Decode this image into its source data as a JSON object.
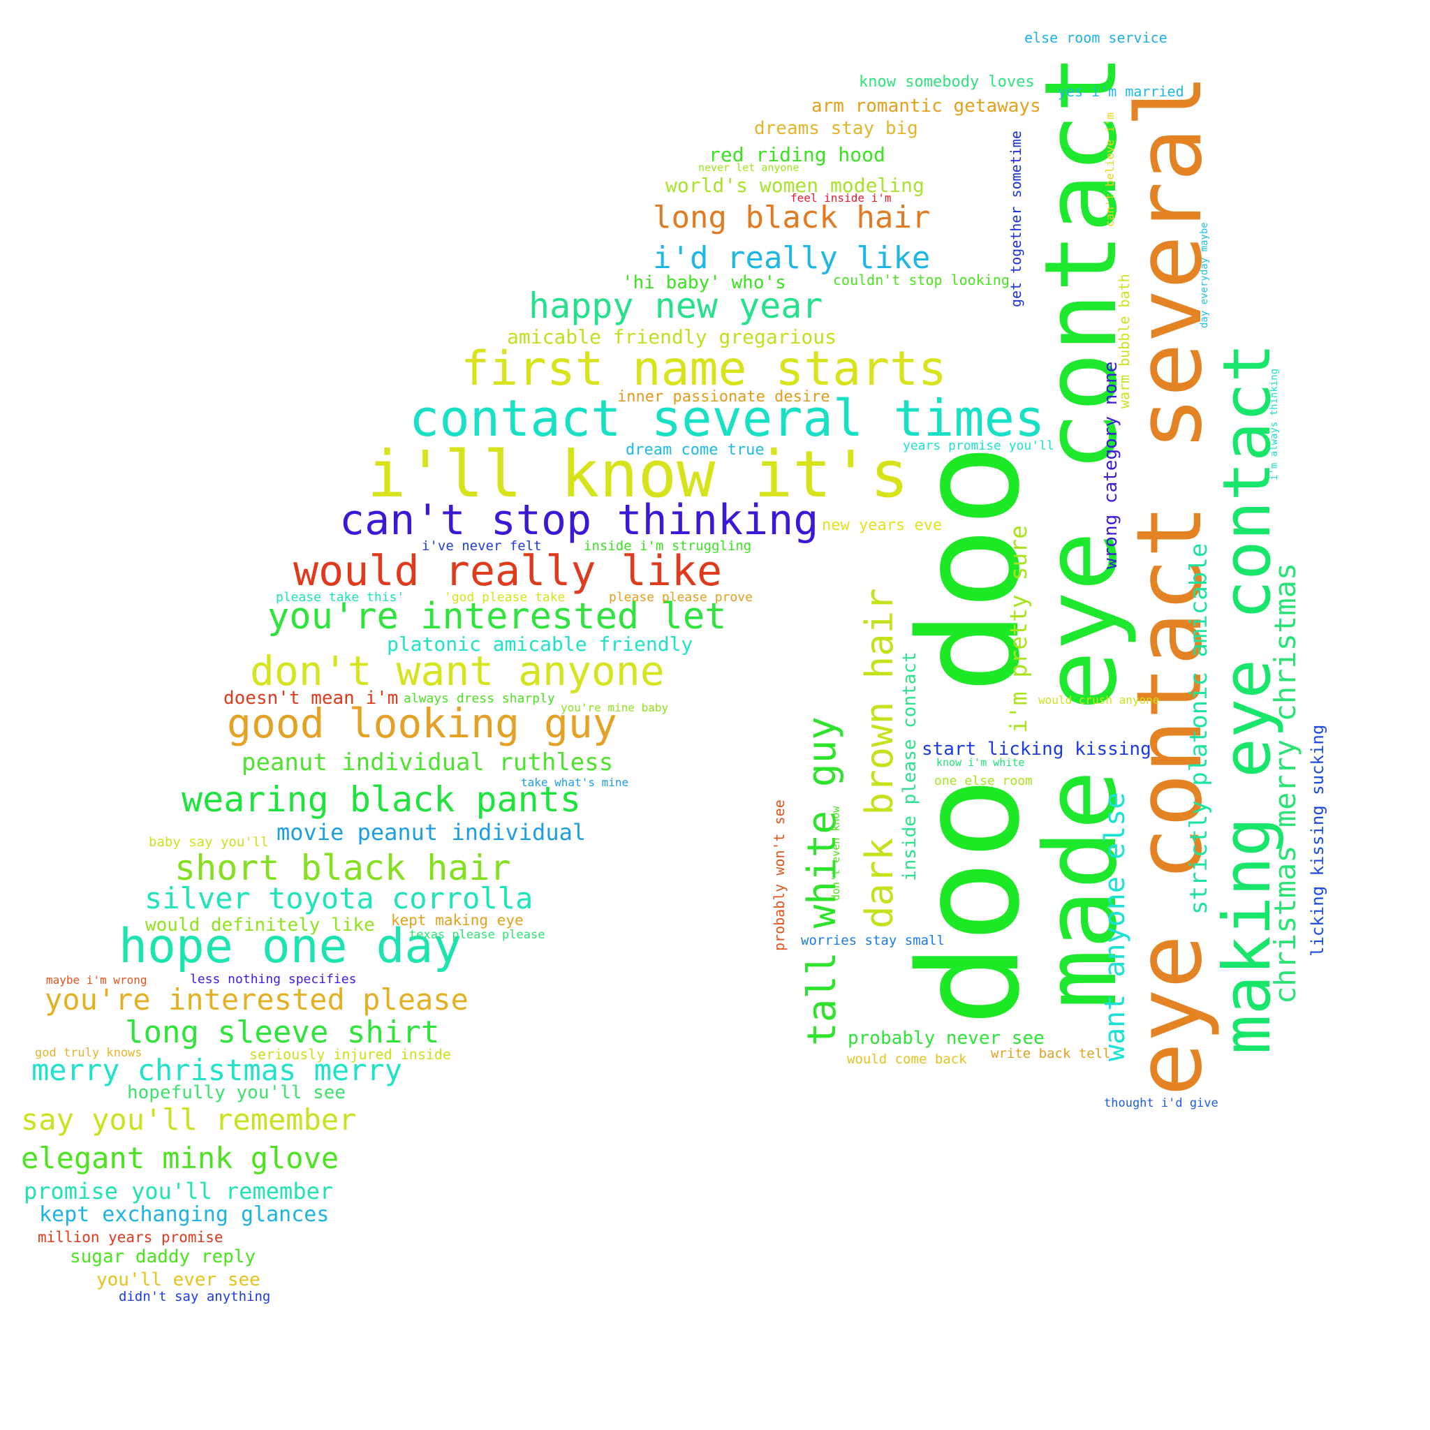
{
  "words": [
    {
      "text": "doo doo",
      "color": "#1de826"
    },
    {
      "text": "made eye contact",
      "color": "#1ee82d"
    },
    {
      "text": "eye contact several",
      "color": "#e38323"
    },
    {
      "text": "making eye contact",
      "color": "#17e66b"
    },
    {
      "text": "i'll know it's",
      "color": "#d6e31a"
    },
    {
      "text": "contact several times",
      "color": "#18e0c4"
    },
    {
      "text": "first name starts",
      "color": "#d9e31c"
    },
    {
      "text": "can't stop thinking",
      "color": "#3a19d6"
    },
    {
      "text": "would really like",
      "color": "#e03a1c"
    },
    {
      "text": "you're interested let",
      "color": "#2ee33c"
    },
    {
      "text": "don't want anyone",
      "color": "#d6e31f"
    },
    {
      "text": "good looking guy",
      "color": "#e3a126"
    },
    {
      "text": "hope one day",
      "color": "#1de3b0"
    },
    {
      "text": "happy new year",
      "color": "#27e08c"
    },
    {
      "text": "long black hair",
      "color": "#e07b22"
    },
    {
      "text": "i'd really like",
      "color": "#1cb7e3"
    },
    {
      "text": "wearing black pants",
      "color": "#1fe33d"
    },
    {
      "text": "short black hair",
      "color": "#84e01e"
    },
    {
      "text": "silver toyota corrolla",
      "color": "#1fe3b9"
    },
    {
      "text": "you're interested please",
      "color": "#e3b024"
    },
    {
      "text": "long sleeve shirt",
      "color": "#2ee33a"
    },
    {
      "text": "merry christmas merry",
      "color": "#1fe3c9"
    },
    {
      "text": "say you'll remember",
      "color": "#c6e31f"
    },
    {
      "text": "elegant mink glove",
      "color": "#4be31f"
    },
    {
      "text": "peanut individual ruthless",
      "color": "#4be32b"
    },
    {
      "text": "tall white guy",
      "color": "#2ee32b"
    },
    {
      "text": "dark brown hair",
      "color": "#c2e31c"
    },
    {
      "text": "christmas merry christmas",
      "color": "#2be375"
    },
    {
      "text": "want anyone else",
      "color": "#1ce0d6"
    },
    {
      "text": "strictly platonic amicable",
      "color": "#1ee3a0"
    },
    {
      "text": "movie peanut individual",
      "color": "#1c9ee3"
    },
    {
      "text": "promise you'll remember",
      "color": "#1fe3b0"
    },
    {
      "text": "kept exchanging glances",
      "color": "#1cb2e3"
    },
    {
      "text": "amicable friendly gregarious",
      "color": "#b9e31f"
    },
    {
      "text": "platonic amicable friendly",
      "color": "#1ee3c4"
    },
    {
      "text": "red riding hood",
      "color": "#3ae31f"
    },
    {
      "text": "world's women modeling",
      "color": "#a8e32b"
    },
    {
      "text": "arm romantic getaways",
      "color": "#e3a01c"
    },
    {
      "text": "dreams stay big",
      "color": "#e3b52b"
    },
    {
      "text": "know somebody loves",
      "color": "#2ee37b"
    },
    {
      "text": "else room service",
      "color": "#1cb2e3"
    },
    {
      "text": "yes i'm married",
      "color": "#1cb9e3"
    },
    {
      "text": "'hi baby' who's",
      "color": "#3ae31f"
    },
    {
      "text": "couldn't stop looking",
      "color": "#4be31f"
    },
    {
      "text": "inner passionate desire",
      "color": "#e39b1c"
    },
    {
      "text": "dream come true",
      "color": "#1cbde3"
    },
    {
      "text": "years promise you'll",
      "color": "#1ce3c9"
    },
    {
      "text": "new years eve",
      "color": "#e3e01c"
    },
    {
      "text": "i've never felt",
      "color": "#1f3ae3"
    },
    {
      "text": "inside i'm struggling",
      "color": "#3ae31f"
    },
    {
      "text": "please take this'",
      "color": "#1ce3b5"
    },
    {
      "text": "'god please take",
      "color": "#d6e31f"
    },
    {
      "text": "please please prove",
      "color": "#e3a01c"
    },
    {
      "text": "doesn't mean i'm",
      "color": "#e03a1c"
    },
    {
      "text": "always dress sharply",
      "color": "#4be31f"
    },
    {
      "text": "you're mine baby",
      "color": "#8fe31c"
    },
    {
      "text": "take what's mine",
      "color": "#1c9ee3"
    },
    {
      "text": "baby say you'll",
      "color": "#c9e31c"
    },
    {
      "text": "would definitely like",
      "color": "#8fe31c"
    },
    {
      "text": "kept making eye",
      "color": "#e3a01c"
    },
    {
      "text": "texas please please",
      "color": "#2ee375"
    },
    {
      "text": "maybe i'm wrong",
      "color": "#e3541c"
    },
    {
      "text": "less nothing specifies",
      "color": "#3a1ce3"
    },
    {
      "text": "god truly knows",
      "color": "#e3b52b"
    },
    {
      "text": "seriously injured inside",
      "color": "#c4e31c"
    },
    {
      "text": "hopefully you'll see",
      "color": "#3ae36b"
    },
    {
      "text": "million years promise",
      "color": "#e03a1c"
    },
    {
      "text": "sugar daddy reply",
      "color": "#4be31f"
    },
    {
      "text": "you'll ever see",
      "color": "#e3c41f"
    },
    {
      "text": "didn't say anything",
      "color": "#1c3ae3"
    },
    {
      "text": "never let anyone",
      "color": "#9ee31c"
    },
    {
      "text": "feel inside i'm",
      "color": "#e31c2e"
    },
    {
      "text": "start licking kissing",
      "color": "#1c3ae3"
    },
    {
      "text": "know i'm white",
      "color": "#1fe375"
    },
    {
      "text": "one else room",
      "color": "#a8e31c"
    },
    {
      "text": "worries stay small",
      "color": "#1c7be3"
    },
    {
      "text": "probably never see",
      "color": "#2ee33a"
    },
    {
      "text": "would come back",
      "color": "#e3c41f"
    },
    {
      "text": "write back tell",
      "color": "#e3a01c"
    },
    {
      "text": "thought i'd give",
      "color": "#1c5be3"
    },
    {
      "text": "would crush anyone",
      "color": "#c9e31c"
    },
    {
      "text": "get together sometime",
      "color": "#1c2ee3"
    },
    {
      "text": "can't believe i'm",
      "color": "#e3d61c"
    },
    {
      "text": "wrong category none",
      "color": "#3a1cd6"
    },
    {
      "text": "warm bubble bath",
      "color": "#c9e31c"
    },
    {
      "text": "day everyday maybe",
      "color": "#1cc4e3"
    },
    {
      "text": "i'm always thinking",
      "color": "#1ce3c9"
    },
    {
      "text": "i'm pretty sure",
      "color": "#a8e31c"
    },
    {
      "text": "inside please contact",
      "color": "#2be38a"
    },
    {
      "text": "don't even know",
      "color": "#4be31f"
    },
    {
      "text": "probably won't see",
      "color": "#e3541c"
    },
    {
      "text": "licking kissing sucking",
      "color": "#1c4be3"
    }
  ]
}
